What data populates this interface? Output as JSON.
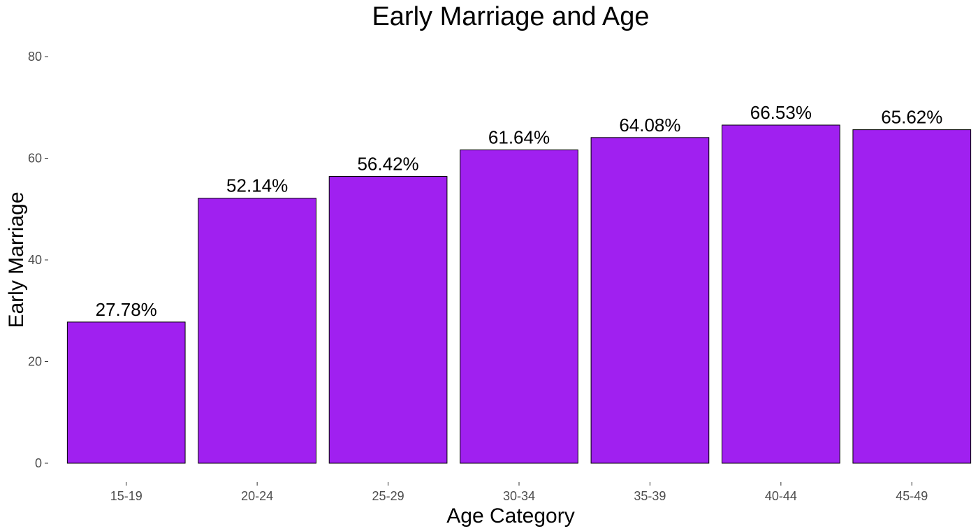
{
  "chart_data": {
    "type": "bar",
    "title": "Early Marriage and Age",
    "xlabel": "Age Category",
    "ylabel": "Early Marriage",
    "categories": [
      "15-19",
      "20-24",
      "25-29",
      "30-34",
      "35-39",
      "40-44",
      "45-49"
    ],
    "values": [
      27.78,
      52.14,
      56.42,
      61.64,
      64.08,
      66.53,
      65.62
    ],
    "data_labels": [
      "27.78%",
      "52.14%",
      "56.42%",
      "61.64%",
      "64.08%",
      "66.53%",
      "65.62%"
    ],
    "ylim": [
      0,
      80
    ],
    "yticks": [
      0,
      20,
      40,
      60,
      80
    ],
    "bar_color": "#a020f0",
    "grid": false,
    "legend": "none"
  }
}
